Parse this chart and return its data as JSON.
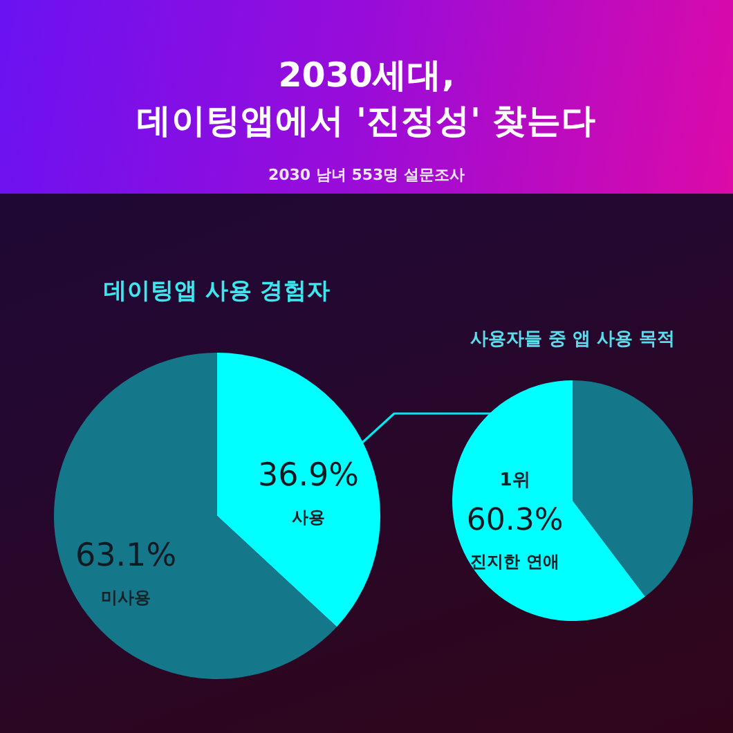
{
  "chart_data": [
    {
      "type": "other",
      "title": "2030세대,\n데이팅앱에서 '진정성' 찾는다",
      "subtitle": "2030 남녀 553명 설문조사"
    },
    {
      "type": "pie",
      "title": "데이팅앱 사용 경험자",
      "categories": [
        "사용",
        "미사용"
      ],
      "values": [
        36.9,
        63.1
      ],
      "colors": [
        "#00ffff",
        "#14788a"
      ],
      "value_labels": [
        "36.9%",
        "63.1%"
      ]
    },
    {
      "type": "pie",
      "title": "사용자들 중 앱 사용 목적",
      "categories": [
        null,
        "진지한 연애"
      ],
      "values": [
        39.7,
        60.3
      ],
      "colors": [
        "#14788a",
        "#00ffff"
      ],
      "value_labels": [
        null,
        "60.3%"
      ],
      "annotations": [
        {
          "text": "1위",
          "x": "진지한 연애"
        }
      ]
    }
  ]
}
